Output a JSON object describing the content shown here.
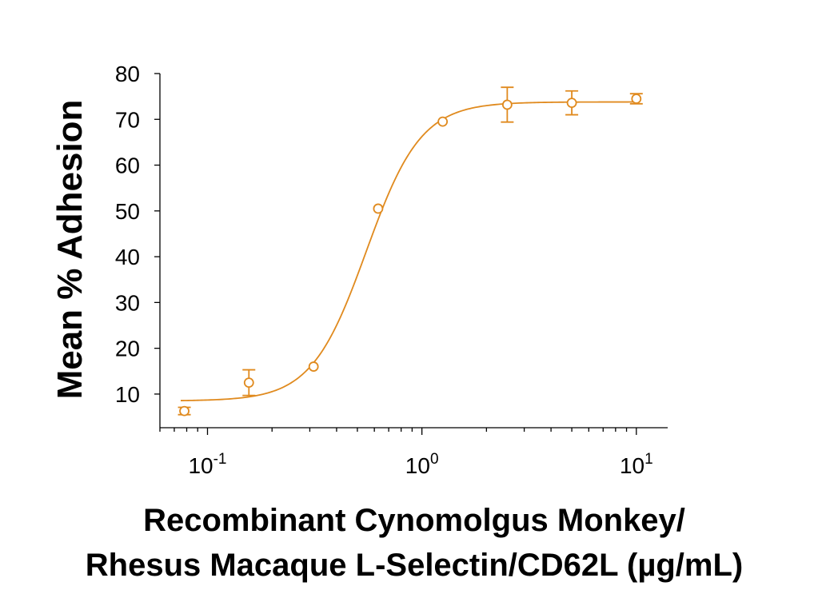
{
  "chart_data": {
    "type": "scatter",
    "title": "",
    "xlabel_lines": [
      "Recombinant Cynomolgus Monkey/",
      "Rhesus Macaque L-Selectin/CD62L (µg/mL)"
    ],
    "ylabel": "Mean % Adhesion",
    "x_scale": "log",
    "xlim": [
      0.06,
      14
    ],
    "ylim": [
      3,
      80
    ],
    "y_ticks": [
      10,
      20,
      30,
      40,
      50,
      60,
      70,
      80
    ],
    "x_ticks": [
      {
        "value": 0.1,
        "base": "10",
        "exp": "-1"
      },
      {
        "value": 1,
        "base": "10",
        "exp": "0"
      },
      {
        "value": 10,
        "base": "10",
        "exp": "1"
      }
    ],
    "grid": false,
    "color": "#E08A1E",
    "series": [
      {
        "points": [
          {
            "x": 0.078,
            "y": 6.3,
            "err": 0.8
          },
          {
            "x": 0.156,
            "y": 12.5,
            "err": 2.8
          },
          {
            "x": 0.3125,
            "y": 16.0,
            "err": 0.5
          },
          {
            "x": 0.625,
            "y": 50.5,
            "err": 0.5
          },
          {
            "x": 1.25,
            "y": 69.5,
            "err": 0.5
          },
          {
            "x": 2.5,
            "y": 73.2,
            "err": 3.8
          },
          {
            "x": 5.0,
            "y": 73.6,
            "err": 2.6
          },
          {
            "x": 10.0,
            "y": 74.5,
            "err": 1.1
          }
        ]
      }
    ],
    "fit_curve": {
      "bottom": 8.5,
      "top": 73.8,
      "ec50": 0.55,
      "hill": 3.4,
      "x_range": [
        0.075,
        10.1
      ]
    }
  }
}
